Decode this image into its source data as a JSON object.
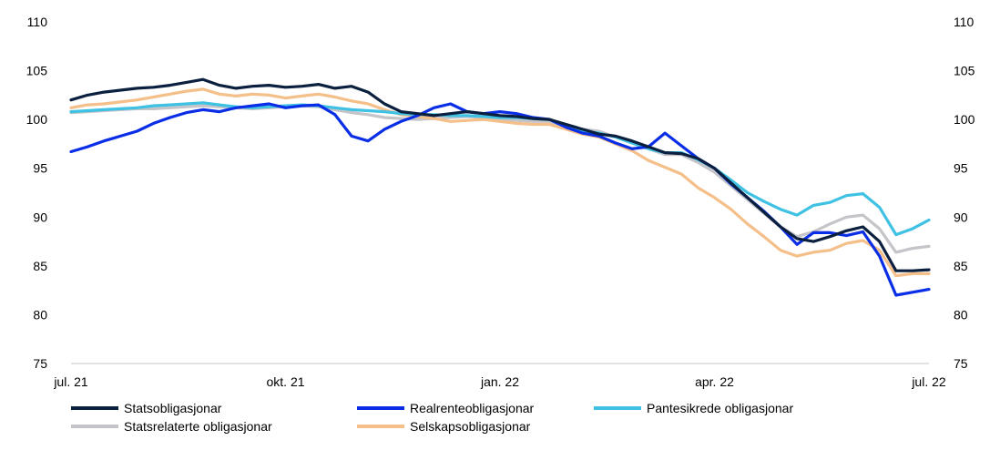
{
  "chart_data": {
    "type": "line",
    "title": "",
    "xlabel": "",
    "ylabel": "",
    "ylim": [
      75,
      110
    ],
    "y_ticks": [
      "75",
      "80",
      "85",
      "90",
      "95",
      "100",
      "105",
      "110"
    ],
    "x_tick_labels": [
      "jul. 21",
      "okt. 21",
      "jan. 22",
      "apr. 22",
      "jul. 22"
    ],
    "x_range_weeks": [
      0,
      52
    ],
    "y_axis_sides": "left and right",
    "grid": false,
    "legend_position": "bottom",
    "series": [
      {
        "name": "Statsobligasjonar",
        "color": "#0b1f3f",
        "points": [
          [
            0,
            102
          ],
          [
            1,
            102.5
          ],
          [
            2,
            102.8
          ],
          [
            3,
            103
          ],
          [
            4,
            103.2
          ],
          [
            5,
            103.3
          ],
          [
            6,
            103.5
          ],
          [
            7,
            103.8
          ],
          [
            8,
            104.1
          ],
          [
            9,
            103.5
          ],
          [
            10,
            103.2
          ],
          [
            11,
            103.4
          ],
          [
            12,
            103.5
          ],
          [
            13,
            103.3
          ],
          [
            14,
            103.4
          ],
          [
            15,
            103.6
          ],
          [
            16,
            103.2
          ],
          [
            17,
            103.4
          ],
          [
            18,
            102.8
          ],
          [
            19,
            101.6
          ],
          [
            20,
            100.8
          ],
          [
            21,
            100.6
          ],
          [
            22,
            100.4
          ],
          [
            23,
            100.6
          ],
          [
            24,
            100.8
          ],
          [
            25,
            100.6
          ],
          [
            26,
            100.4
          ],
          [
            27,
            100.3
          ],
          [
            28,
            100.1
          ],
          [
            29,
            100
          ],
          [
            30,
            99.5
          ],
          [
            31,
            99
          ],
          [
            32,
            98.5
          ],
          [
            33,
            98.3
          ],
          [
            34,
            97.8
          ],
          [
            35,
            97.2
          ],
          [
            36,
            96.6
          ],
          [
            37,
            96.5
          ],
          [
            38,
            96
          ],
          [
            39,
            95
          ],
          [
            40,
            93.5
          ],
          [
            41,
            92
          ],
          [
            42,
            90.5
          ],
          [
            43,
            89
          ],
          [
            44,
            87.8
          ],
          [
            45,
            87.5
          ],
          [
            46,
            88
          ],
          [
            47,
            88.6
          ],
          [
            48,
            89
          ],
          [
            49,
            87.5
          ],
          [
            50,
            84.5
          ],
          [
            51,
            84.5
          ],
          [
            52,
            84.6
          ]
        ]
      },
      {
        "name": "Realrenteobligasjonar",
        "color": "#0a2ee6",
        "points": [
          [
            0,
            96.7
          ],
          [
            1,
            97.2
          ],
          [
            2,
            97.8
          ],
          [
            3,
            98.3
          ],
          [
            4,
            98.8
          ],
          [
            5,
            99.6
          ],
          [
            6,
            100.2
          ],
          [
            7,
            100.7
          ],
          [
            8,
            101
          ],
          [
            9,
            100.8
          ],
          [
            10,
            101.2
          ],
          [
            11,
            101.4
          ],
          [
            12,
            101.6
          ],
          [
            13,
            101.2
          ],
          [
            14,
            101.4
          ],
          [
            15,
            101.5
          ],
          [
            16,
            100.5
          ],
          [
            17,
            98.3
          ],
          [
            18,
            97.8
          ],
          [
            19,
            99
          ],
          [
            20,
            99.8
          ],
          [
            21,
            100.4
          ],
          [
            22,
            101.2
          ],
          [
            23,
            101.6
          ],
          [
            24,
            100.8
          ],
          [
            25,
            100.6
          ],
          [
            26,
            100.8
          ],
          [
            27,
            100.6
          ],
          [
            28,
            100.2
          ],
          [
            29,
            100
          ],
          [
            30,
            99.2
          ],
          [
            31,
            98.6
          ],
          [
            32,
            98.3
          ],
          [
            33,
            97.6
          ],
          [
            34,
            97
          ],
          [
            35,
            97.2
          ],
          [
            36,
            98.6
          ],
          [
            37,
            97.3
          ],
          [
            38,
            96
          ],
          [
            39,
            95
          ],
          [
            40,
            93.4
          ],
          [
            41,
            92
          ],
          [
            42,
            90.6
          ],
          [
            43,
            89
          ],
          [
            44,
            87.2
          ],
          [
            45,
            88.4
          ],
          [
            46,
            88.4
          ],
          [
            47,
            88.1
          ],
          [
            48,
            88.5
          ],
          [
            49,
            86
          ],
          [
            50,
            82
          ],
          [
            51,
            82.3
          ],
          [
            52,
            82.6
          ]
        ]
      },
      {
        "name": "Pantesikrede obligasjonar",
        "color": "#3fc1e4",
        "points": [
          [
            0,
            100.8
          ],
          [
            1,
            100.9
          ],
          [
            2,
            101
          ],
          [
            3,
            101.1
          ],
          [
            4,
            101.2
          ],
          [
            5,
            101.4
          ],
          [
            6,
            101.5
          ],
          [
            7,
            101.6
          ],
          [
            8,
            101.7
          ],
          [
            9,
            101.5
          ],
          [
            10,
            101.3
          ],
          [
            11,
            101.2
          ],
          [
            12,
            101.3
          ],
          [
            13,
            101.4
          ],
          [
            14,
            101.5
          ],
          [
            15,
            101.4
          ],
          [
            16,
            101.2
          ],
          [
            17,
            101
          ],
          [
            18,
            100.9
          ],
          [
            19,
            100.8
          ],
          [
            20,
            100.6
          ],
          [
            21,
            100.5
          ],
          [
            22,
            100.5
          ],
          [
            23,
            100.4
          ],
          [
            24,
            100.4
          ],
          [
            25,
            100.3
          ],
          [
            26,
            100.2
          ],
          [
            27,
            100.2
          ],
          [
            28,
            100.1
          ],
          [
            29,
            100
          ],
          [
            30,
            99.3
          ],
          [
            31,
            98.8
          ],
          [
            32,
            98.6
          ],
          [
            33,
            98.2
          ],
          [
            34,
            97.6
          ],
          [
            35,
            97
          ],
          [
            36,
            96.6
          ],
          [
            37,
            96.6
          ],
          [
            38,
            95.9
          ],
          [
            39,
            95
          ],
          [
            40,
            93.8
          ],
          [
            41,
            92.5
          ],
          [
            42,
            91.6
          ],
          [
            43,
            90.8
          ],
          [
            44,
            90.2
          ],
          [
            45,
            91.2
          ],
          [
            46,
            91.5
          ],
          [
            47,
            92.2
          ],
          [
            48,
            92.4
          ],
          [
            49,
            91
          ],
          [
            50,
            88.2
          ],
          [
            51,
            88.8
          ],
          [
            52,
            89.7
          ]
        ]
      },
      {
        "name": "Statsrelaterte obligasjonar",
        "color": "#c4c4c9",
        "points": [
          [
            0,
            100.7
          ],
          [
            1,
            100.8
          ],
          [
            2,
            100.9
          ],
          [
            3,
            101
          ],
          [
            4,
            101.1
          ],
          [
            5,
            101.1
          ],
          [
            6,
            101.2
          ],
          [
            7,
            101.3
          ],
          [
            8,
            101.4
          ],
          [
            9,
            101.3
          ],
          [
            10,
            101.2
          ],
          [
            11,
            101.1
          ],
          [
            12,
            101.2
          ],
          [
            13,
            101.3
          ],
          [
            14,
            101.4
          ],
          [
            15,
            101.3
          ],
          [
            16,
            101
          ],
          [
            17,
            100.7
          ],
          [
            18,
            100.5
          ],
          [
            19,
            100.2
          ],
          [
            20,
            100.1
          ],
          [
            21,
            100
          ],
          [
            22,
            100.1
          ],
          [
            23,
            100.2
          ],
          [
            24,
            100.3
          ],
          [
            25,
            100.2
          ],
          [
            26,
            100
          ],
          [
            27,
            99.9
          ],
          [
            28,
            99.8
          ],
          [
            29,
            99.8
          ],
          [
            30,
            99.3
          ],
          [
            31,
            99
          ],
          [
            32,
            98.8
          ],
          [
            33,
            98.2
          ],
          [
            34,
            97.6
          ],
          [
            35,
            97
          ],
          [
            36,
            96.4
          ],
          [
            37,
            96.4
          ],
          [
            38,
            95.6
          ],
          [
            39,
            94.6
          ],
          [
            40,
            93.2
          ],
          [
            41,
            91.8
          ],
          [
            42,
            90.4
          ],
          [
            43,
            89
          ],
          [
            44,
            88
          ],
          [
            45,
            88.5
          ],
          [
            46,
            89.3
          ],
          [
            47,
            90
          ],
          [
            48,
            90.2
          ],
          [
            49,
            88.8
          ],
          [
            50,
            86.4
          ],
          [
            51,
            86.8
          ],
          [
            52,
            87
          ]
        ]
      },
      {
        "name": "Selskapsobligasjonar",
        "color": "#f5bf8a",
        "points": [
          [
            0,
            101.2
          ],
          [
            1,
            101.5
          ],
          [
            2,
            101.6
          ],
          [
            3,
            101.8
          ],
          [
            4,
            102
          ],
          [
            5,
            102.3
          ],
          [
            6,
            102.6
          ],
          [
            7,
            102.9
          ],
          [
            8,
            103.1
          ],
          [
            9,
            102.6
          ],
          [
            10,
            102.4
          ],
          [
            11,
            102.6
          ],
          [
            12,
            102.5
          ],
          [
            13,
            102.2
          ],
          [
            14,
            102.4
          ],
          [
            15,
            102.6
          ],
          [
            16,
            102.3
          ],
          [
            17,
            101.9
          ],
          [
            18,
            101.6
          ],
          [
            19,
            101
          ],
          [
            20,
            100.5
          ],
          [
            21,
            100.3
          ],
          [
            22,
            100.1
          ],
          [
            23,
            99.8
          ],
          [
            24,
            99.9
          ],
          [
            25,
            100
          ],
          [
            26,
            99.8
          ],
          [
            27,
            99.6
          ],
          [
            28,
            99.5
          ],
          [
            29,
            99.5
          ],
          [
            30,
            99
          ],
          [
            31,
            98.5
          ],
          [
            32,
            98.2
          ],
          [
            33,
            97.5
          ],
          [
            34,
            96.8
          ],
          [
            35,
            95.8
          ],
          [
            36,
            95.1
          ],
          [
            37,
            94.4
          ],
          [
            38,
            93
          ],
          [
            39,
            92
          ],
          [
            40,
            90.8
          ],
          [
            41,
            89.3
          ],
          [
            42,
            88
          ],
          [
            43,
            86.6
          ],
          [
            44,
            86
          ],
          [
            45,
            86.4
          ],
          [
            46,
            86.6
          ],
          [
            47,
            87.3
          ],
          [
            48,
            87.6
          ],
          [
            49,
            86.6
          ],
          [
            50,
            84
          ],
          [
            51,
            84.2
          ],
          [
            52,
            84.2
          ]
        ]
      }
    ]
  }
}
